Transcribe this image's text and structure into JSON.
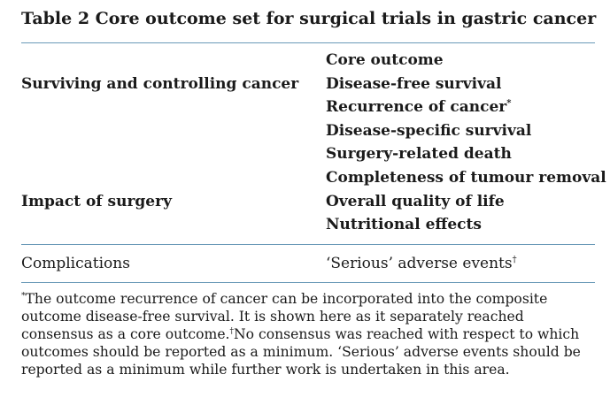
{
  "table": {
    "title": "Table 2 Core outcome set for surgical trials in gastric cancer",
    "header_outcome": "Core outcome",
    "domains": [
      {
        "label": "Surviving and controlling cancer"
      },
      {
        "label": "Impact of surgery"
      }
    ],
    "outcomes": [
      {
        "label": "Disease-free survival",
        "mark": ""
      },
      {
        "label": "Recurrence of cancer",
        "mark": "*"
      },
      {
        "label": "Disease-specific survival",
        "mark": ""
      },
      {
        "label": "Surgery-related death",
        "mark": ""
      },
      {
        "label": "Completeness of tumour removal",
        "mark": ""
      },
      {
        "label": "Overall quality of life",
        "mark": ""
      },
      {
        "label": "Nutritional effects",
        "mark": ""
      }
    ],
    "complications_row": {
      "domain": "Complications",
      "outcome": "‘Serious’ adverse events",
      "mark": "†"
    }
  },
  "footnote": {
    "mark1": "*",
    "text1": "The outcome recurrence of cancer can be incorporated into the composite outcome disease-free survival. It is shown here as it separately reached consensus as a core outcome.",
    "mark2": "†",
    "text2": "No consensus was reached with respect to which outcomes should be reported as a minimum. ‘Serious’ adverse events should be reported as a minimum while further work is undertaken in this area."
  }
}
